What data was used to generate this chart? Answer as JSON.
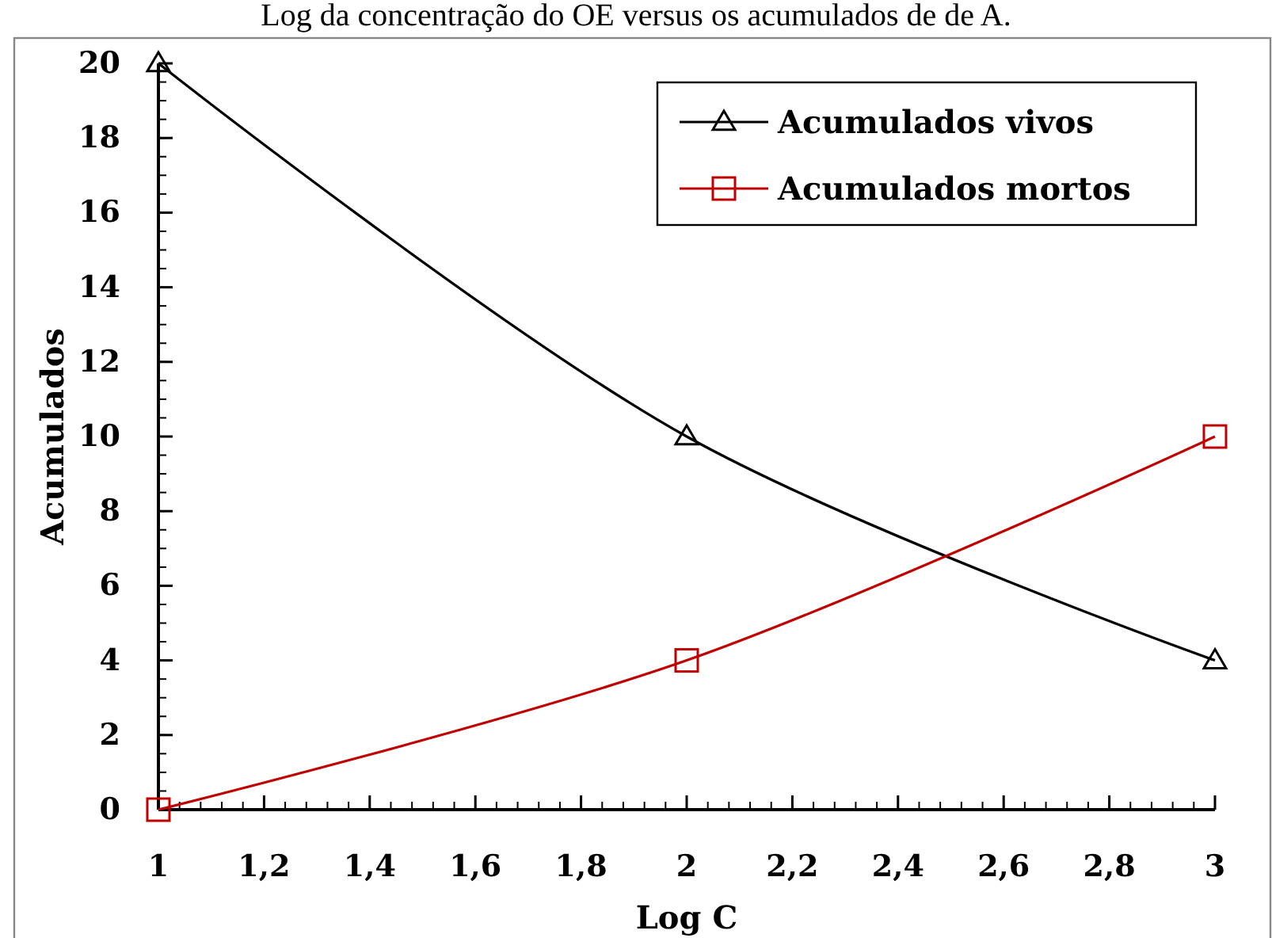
{
  "chart_data": {
    "type": "line",
    "title": "Log da concentração do OE versus os acumulados de de A.",
    "xlabel": "Log C",
    "ylabel": "Acumulados",
    "x": [
      1,
      2,
      3
    ],
    "series": [
      {
        "name": "Acumulados vivos",
        "color": "#000000",
        "values": [
          20,
          10,
          4
        ],
        "marker": "triangle"
      },
      {
        "name": "Acumulados mortos",
        "color": "#c00000",
        "values": [
          0,
          4,
          10
        ],
        "marker": "square"
      }
    ],
    "xlim": [
      1,
      3
    ],
    "xticks": [
      1,
      {
        "value": 1.2,
        "label": "1,2"
      },
      {
        "value": 1.4,
        "label": "1,4"
      },
      {
        "value": 1.6,
        "label": "1,6"
      },
      {
        "value": 1.8,
        "label": "1,8"
      },
      2,
      {
        "value": 2.2,
        "label": "2,2"
      },
      {
        "value": 2.4,
        "label": "2,4"
      },
      {
        "value": 2.6,
        "label": "2,6"
      },
      {
        "value": 2.8,
        "label": "2,8"
      },
      3
    ],
    "ylim": [
      0,
      20
    ],
    "yticks": [
      0,
      2,
      4,
      6,
      8,
      10,
      12,
      14,
      16,
      18,
      20
    ],
    "grid": false,
    "legend": "top right",
    "line_style": "solid"
  }
}
